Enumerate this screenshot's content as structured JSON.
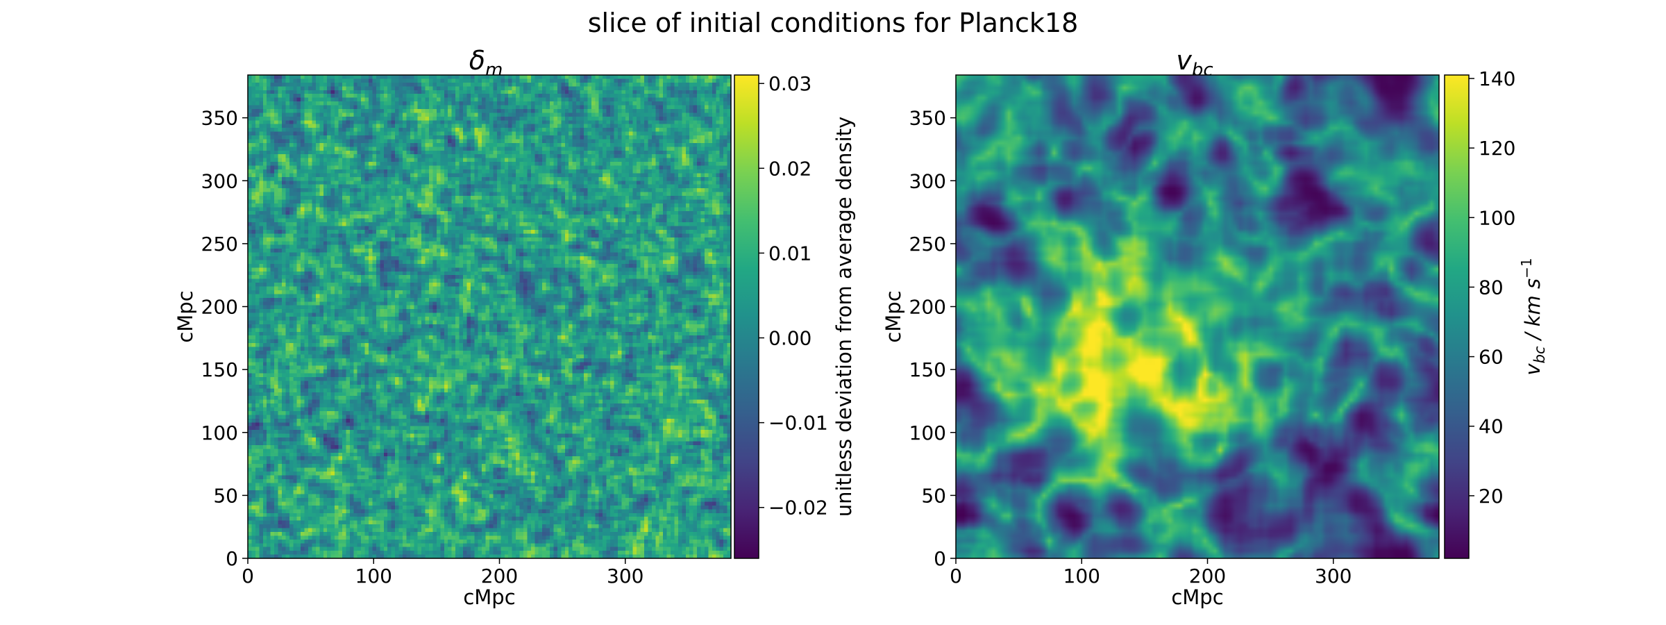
{
  "figure": {
    "suptitle": "slice of initial conditions for Planck18"
  },
  "chart_data": [
    {
      "type": "heatmap",
      "title": "δm",
      "title_main": "δ",
      "title_sub": "m",
      "xlabel": "cMpc",
      "ylabel": "cMpc",
      "xlim": [
        0,
        384
      ],
      "ylim": [
        0,
        384
      ],
      "xticks": [
        0,
        100,
        200,
        300
      ],
      "yticks": [
        0,
        50,
        100,
        150,
        200,
        250,
        300,
        350
      ],
      "xtick_labels": [
        "0",
        "100",
        "200",
        "300"
      ],
      "ytick_labels": [
        "0",
        "50",
        "100",
        "150",
        "200",
        "250",
        "300",
        "350"
      ],
      "colormap": "viridis",
      "texture": "fine-grained noise",
      "colorbar": {
        "label": "unitless deviation from average density",
        "range": [
          -0.026,
          0.031
        ],
        "ticks": [
          -0.02,
          -0.01,
          0.0,
          0.01,
          0.02,
          0.03
        ],
        "tick_labels": [
          "−0.02",
          "−0.01",
          "0.00",
          "0.01",
          "0.02",
          "0.03"
        ]
      }
    },
    {
      "type": "heatmap",
      "title": "vbc",
      "title_main": "v",
      "title_sub": "bc",
      "xlabel": "cMpc",
      "ylabel": "cMpc",
      "xlim": [
        0,
        384
      ],
      "ylim": [
        0,
        384
      ],
      "xticks": [
        0,
        100,
        200,
        300
      ],
      "yticks": [
        0,
        50,
        100,
        150,
        200,
        250,
        300,
        350
      ],
      "xtick_labels": [
        "0",
        "100",
        "200",
        "300"
      ],
      "ytick_labels": [
        "0",
        "50",
        "100",
        "150",
        "200",
        "250",
        "300",
        "350"
      ],
      "colormap": "viridis",
      "texture": "smooth filamentary",
      "colorbar": {
        "label": "vbc / km s−1",
        "label_v": "v",
        "label_v_sub": "bc",
        "label_units": " / km s",
        "label_exp": "−1",
        "range": [
          2,
          141
        ],
        "ticks": [
          20,
          40,
          60,
          80,
          100,
          120,
          140
        ],
        "tick_labels": [
          "20",
          "40",
          "60",
          "80",
          "100",
          "120",
          "140"
        ]
      }
    }
  ]
}
